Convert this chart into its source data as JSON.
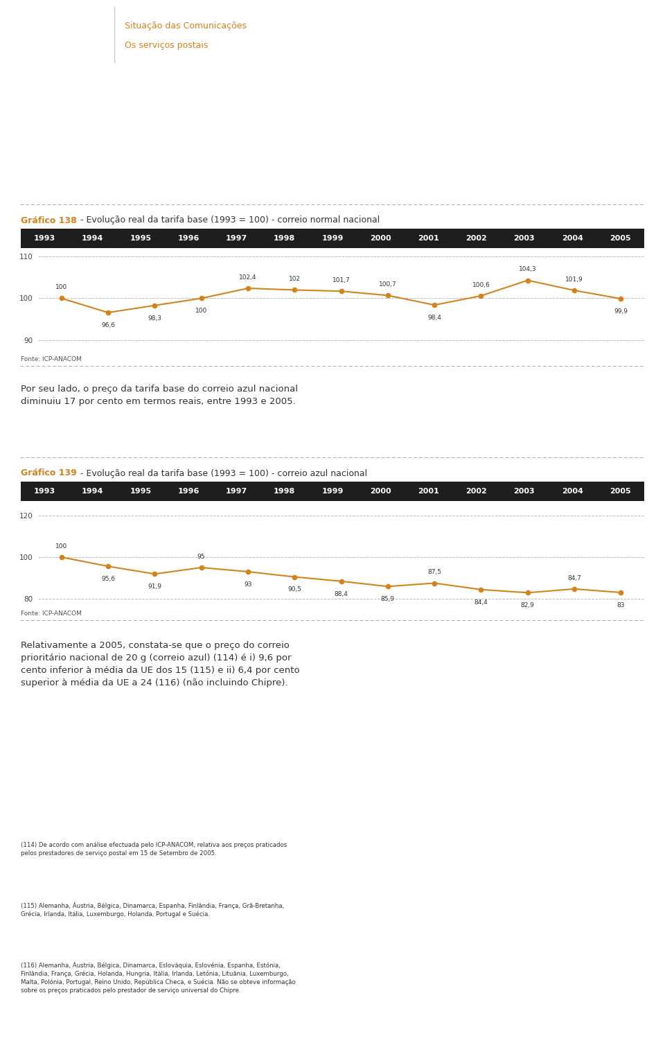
{
  "page_bg": "#ffffff",
  "header_title1": "Situação das Comunicações",
  "header_title2": "Os serviços postais",
  "header_color": "#d4821a",
  "chart138": {
    "title_bold": "Gráfico 138",
    "title_rest": " - Evolução real da tarifa base (1993 = 100) - correio normal nacional",
    "title_color_bold": "#d4821a",
    "title_color_rest": "#333333",
    "years": [
      1993,
      1994,
      1995,
      1996,
      1997,
      1998,
      1999,
      2000,
      2001,
      2002,
      2003,
      2004,
      2005
    ],
    "values": [
      100.0,
      96.6,
      98.3,
      100.0,
      102.4,
      102.0,
      101.7,
      100.7,
      98.4,
      100.6,
      104.3,
      101.9,
      99.9
    ],
    "line_color": "#d4821a",
    "marker_color": "#d4821a",
    "ylim": [
      88,
      112
    ],
    "yticks": [
      90,
      100,
      110
    ],
    "header_bg": "#1e1e1e",
    "header_text": "#ffffff",
    "fonte": "Fonte: ICP-ANACOM",
    "val_offsets": [
      8,
      -10,
      -10,
      -10,
      8,
      8,
      8,
      8,
      -10,
      8,
      8,
      8,
      -10
    ],
    "val_vas": [
      "bottom",
      "top",
      "top",
      "top",
      "bottom",
      "bottom",
      "bottom",
      "bottom",
      "top",
      "bottom",
      "bottom",
      "bottom",
      "top"
    ]
  },
  "text_block1": "Por seu lado, o preço da tarifa base do correio azul nacional\ndiminuiu 17 por cento em termos reais, entre 1993 e 2005.",
  "chart139": {
    "title_bold": "Gráfico 139",
    "title_rest": " - Evolução real da tarifa base (1993 = 100) - correio azul nacional",
    "title_color_bold": "#d4821a",
    "title_color_rest": "#333333",
    "years": [
      1993,
      1994,
      1995,
      1996,
      1997,
      1998,
      1999,
      2000,
      2001,
      2002,
      2003,
      2004,
      2005
    ],
    "values": [
      100.0,
      95.6,
      91.9,
      95.0,
      93.0,
      90.5,
      88.4,
      85.9,
      87.5,
      84.4,
      82.9,
      84.7,
      83.0
    ],
    "line_color": "#d4821a",
    "marker_color": "#d4821a",
    "ylim": [
      77,
      127
    ],
    "yticks": [
      80,
      100,
      120
    ],
    "header_bg": "#1e1e1e",
    "header_text": "#ffffff",
    "fonte": "Fonte: ICP-ANACOM",
    "val_offsets": [
      8,
      -10,
      -10,
      8,
      -10,
      -10,
      -10,
      -10,
      8,
      -10,
      -10,
      8,
      -10
    ],
    "val_vas": [
      "bottom",
      "top",
      "top",
      "bottom",
      "top",
      "top",
      "top",
      "top",
      "bottom",
      "top",
      "top",
      "bottom",
      "top"
    ]
  },
  "text_block2": "Relativamente a 2005, constata-se que o preço do correio\nprioritário nacional de 20 g (correio azul) (114) é i) 9,6 por\ncento inferior à média da UE dos 15 (115) e ii) 6,4 por cento\nsuperior à média da UE a 24 (116) (não incluindo Chipre).",
  "footnote1": "(114) De acordo com análise efectuada pelo ICP-ANACOM, relativa aos preços praticados\npelos prestadores de serviço postal em 15 de Setembro de 2005.",
  "footnote2": "(115) Alemanha, Áustria, Bélgica, Dinamarca, Espanha, Finlândia, França, Grã-Bretanha,\nGrécia, Irlanda, Itália, Luxemburgo, Holanda, Portugal e Suécia.",
  "footnote3": "(116) Alemanha, Áustria, Bélgica, Dinamarca, Eslováquia, Eslovénia, Espanha, Estónia,\nFinlândia, França, Grécia, Holanda, Hungria, Itália, Irlanda, Letónia, Lituânia, Luxemburgo,\nMalta, Polónia, Portugal, Reino Unido, República Checa, e Suécia. Não se obteve informação\nsobre os preços praticados pelo prestador de serviço universal do Chipre."
}
